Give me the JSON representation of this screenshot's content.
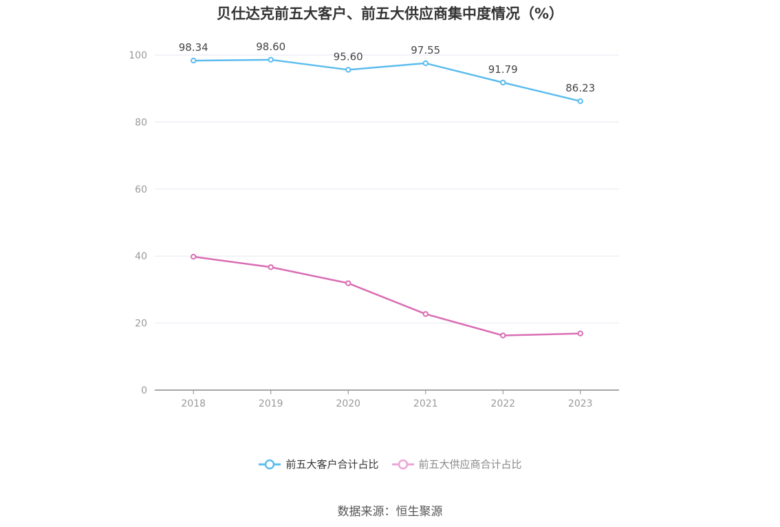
{
  "title": "贝仕达克前五大客户、前五大供应商集中度情况（%）",
  "source": "数据来源：恒生聚源",
  "chart_data": {
    "type": "line",
    "x": [
      "2018",
      "2019",
      "2020",
      "2021",
      "2022",
      "2023"
    ],
    "ylim": [
      0,
      100
    ],
    "yticks": [
      0,
      20,
      40,
      60,
      80,
      100
    ],
    "grid": true,
    "legend_position": "bottom",
    "series": [
      {
        "name": "前五大客户合计占比",
        "values": [
          98.34,
          98.6,
          95.6,
          97.55,
          91.79,
          86.23
        ],
        "labels": [
          "98.34",
          "98.60",
          "95.60",
          "97.55",
          "91.79",
          "86.23"
        ],
        "color": "#5bbcee"
      },
      {
        "name": "前五大供应商合计占比",
        "values": [
          39.8,
          36.7,
          31.9,
          22.7,
          16.3,
          16.9
        ],
        "color": "#d96db3",
        "legend_color": "#e8a6d4"
      }
    ]
  }
}
